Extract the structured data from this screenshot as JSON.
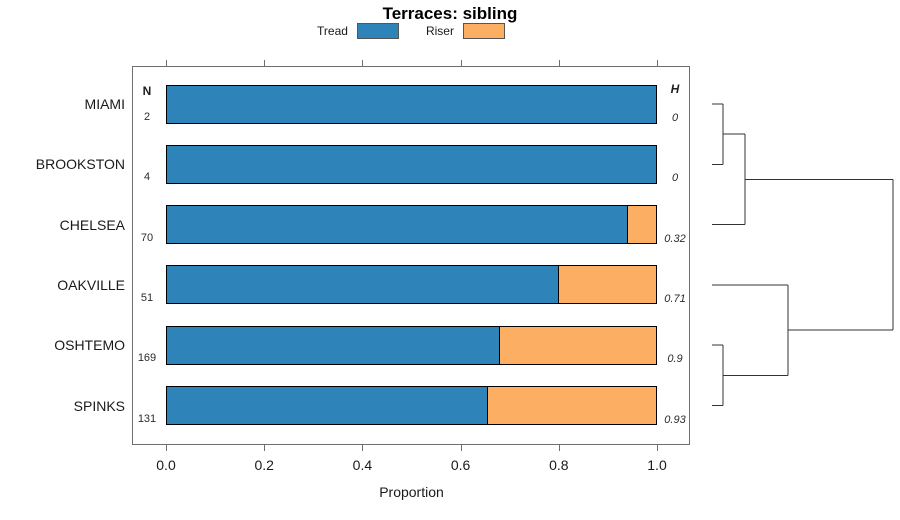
{
  "header": {
    "title": "Terraces: sibling"
  },
  "legend": {
    "items": [
      {
        "label": "Tread",
        "color": "#2E83B8"
      },
      {
        "label": "Riser",
        "color": "#FCAE63"
      }
    ]
  },
  "columns": {
    "n_header": "N",
    "h_header": "H"
  },
  "chart_data": {
    "type": "bar",
    "orientation": "horizontal-stacked",
    "title": "Terraces: sibling",
    "xlabel": "Proportion",
    "xlim": [
      0.0,
      1.0
    ],
    "x_ticks": {
      "values": [
        0.0,
        0.2,
        0.4,
        0.6,
        0.8,
        1.0
      ],
      "labels": [
        "0.0",
        "0.2",
        "0.4",
        "0.6",
        "0.8",
        "1.0"
      ]
    },
    "categories": [
      "MIAMI",
      "BROOKSTON",
      "CHELSEA",
      "OAKVILLE",
      "OSHTEMO",
      "SPINKS"
    ],
    "series": [
      {
        "name": "Tread",
        "color": "#2E83B8",
        "values": [
          1.0,
          1.0,
          0.94,
          0.8,
          0.68,
          0.655
        ]
      },
      {
        "name": "Riser",
        "color": "#FCAE63",
        "values": [
          0.0,
          0.0,
          0.06,
          0.2,
          0.32,
          0.345
        ]
      }
    ],
    "N": [
      "2",
      "4",
      "70",
      "51",
      "169",
      "131"
    ],
    "H": [
      "0",
      "0",
      "0.32",
      "0.71",
      "0.9",
      "0.93"
    ],
    "legend_position": "top",
    "grid": false,
    "dendrogram": {
      "description": "hierarchical clustering of categories, drawn right of panel",
      "merges": [
        {
          "id": "m0",
          "children": [
            0,
            1
          ],
          "height": 0.061
        },
        {
          "id": "m1",
          "children": [
            "m0",
            2
          ],
          "height": 0.182
        },
        {
          "id": "m2",
          "children": [
            4,
            5
          ],
          "height": 0.061
        },
        {
          "id": "m3",
          "children": [
            3,
            "m2"
          ],
          "height": 0.42
        },
        {
          "id": "m4",
          "children": [
            "m1",
            "m3"
          ],
          "height": 1.0
        }
      ]
    }
  }
}
